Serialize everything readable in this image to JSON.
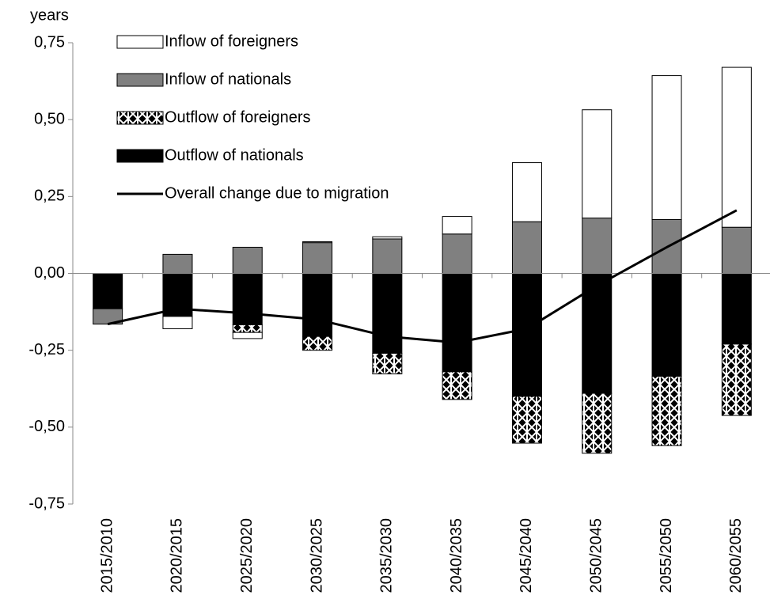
{
  "chart_data": {
    "type": "bar",
    "y_label": "years",
    "categories": [
      "2015/2010",
      "2020/2015",
      "2025/2020",
      "2030/2025",
      "2035/2030",
      "2040/2035",
      "2045/2040",
      "2050/2045",
      "2055/2050",
      "2060/2055"
    ],
    "series": [
      {
        "name": "Inflow of foreigners",
        "color": "#ffffff",
        "values": [
          0,
          -0.04,
          -0.02,
          0.003,
          0.007,
          0.057,
          0.192,
          0.352,
          0.468,
          0.52
        ]
      },
      {
        "name": "Inflow of nationals",
        "color": "#808080",
        "values": [
          -0.05,
          0.062,
          0.085,
          0.1,
          0.112,
          0.128,
          0.168,
          0.18,
          0.175,
          0.15
        ]
      },
      {
        "name": "Outflow of foreigners",
        "color": "#000000",
        "pattern": "hatch",
        "values": [
          0,
          0,
          -0.025,
          -0.045,
          -0.067,
          -0.09,
          -0.152,
          -0.195,
          -0.225,
          -0.232
        ]
      },
      {
        "name": "Outflow of nationals",
        "color": "#000000",
        "values": [
          -0.115,
          -0.14,
          -0.167,
          -0.205,
          -0.26,
          -0.32,
          -0.4,
          -0.39,
          -0.335,
          -0.23
        ]
      },
      {
        "name": "Overall change due to migration",
        "type": "line",
        "color": "#000000",
        "values": [
          -0.165,
          -0.115,
          -0.13,
          -0.15,
          -0.205,
          -0.225,
          -0.18,
          -0.04,
          0.085,
          0.205
        ]
      }
    ],
    "ylim": [
      -0.75,
      0.75
    ],
    "yticks": [
      {
        "value": -0.75,
        "label": "-0,75"
      },
      {
        "value": -0.5,
        "label": "-0,50"
      },
      {
        "value": -0.25,
        "label": "-0,25"
      },
      {
        "value": 0,
        "label": "0,00"
      },
      {
        "value": 0.25,
        "label": "0,25"
      },
      {
        "value": 0.5,
        "label": "0,50"
      },
      {
        "value": 0.75,
        "label": "0,75"
      }
    ],
    "grid": false,
    "legend": "upper-left"
  }
}
